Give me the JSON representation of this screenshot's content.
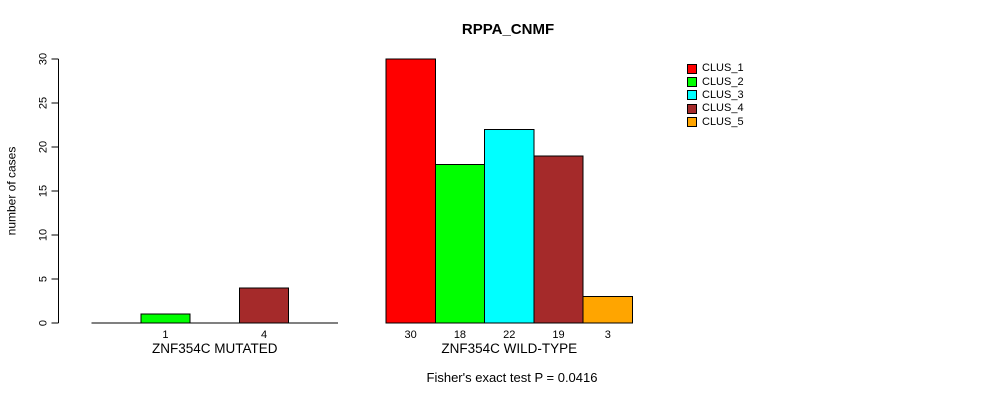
{
  "chart_data": {
    "type": "bar",
    "title": "RPPA_CNMF",
    "ylabel": "number of cases",
    "xlabel": "",
    "ylim": [
      0,
      30
    ],
    "yticks": [
      0,
      5,
      10,
      15,
      20,
      25,
      30
    ],
    "grid": false,
    "legend_position": "top-right",
    "bar_border_color": "#000000",
    "series": [
      "CLUS_1",
      "CLUS_2",
      "CLUS_3",
      "CLUS_4",
      "CLUS_5"
    ],
    "colors": [
      "#FF0000",
      "#00FF00",
      "#00FFFF",
      "#A52A2A",
      "#FFA500"
    ],
    "groups": [
      {
        "label": "ZNF354C MUTATED",
        "values": [
          0,
          1,
          0,
          4,
          0
        ]
      },
      {
        "label": "ZNF354C WILD-TYPE",
        "values": [
          30,
          18,
          22,
          19,
          3
        ]
      }
    ],
    "bar_value_label_rule": "only nonzero values are labeled under bars",
    "annotation": "Fisher's exact test P = 0.0416"
  }
}
